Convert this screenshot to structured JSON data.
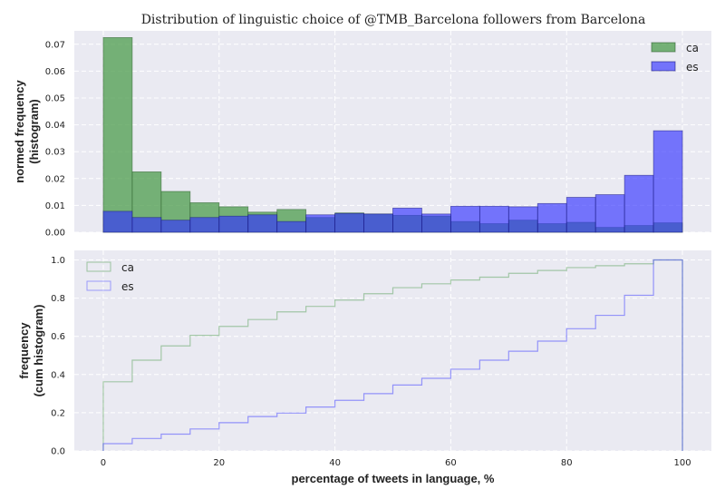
{
  "chart_data": [
    {
      "type": "bar",
      "title": "Distribution of linguistic choice of @TMB_Barcelona followers from Barcelona",
      "ylabel_line1": "normed frequency",
      "ylabel_line2": "(histogram)",
      "xlabel": "",
      "bin_edges": [
        0,
        5,
        10,
        15,
        20,
        25,
        30,
        35,
        40,
        45,
        50,
        55,
        60,
        65,
        70,
        75,
        80,
        85,
        90,
        95,
        100
      ],
      "xlim": [
        -5,
        105
      ],
      "ylim": [
        0,
        0.075
      ],
      "yticks": [
        0.0,
        0.01,
        0.02,
        0.03,
        0.04,
        0.05,
        0.06,
        0.07
      ],
      "ytick_labels": [
        "0.00",
        "0.01",
        "0.02",
        "0.03",
        "0.04",
        "0.05",
        "0.06",
        "0.07"
      ],
      "grid": true,
      "legend_position": "top-right",
      "series": [
        {
          "name": "ca",
          "color": "#4c9c4c",
          "values": [
            0.0725,
            0.0225,
            0.0152,
            0.011,
            0.0095,
            0.0075,
            0.0085,
            0.0055,
            0.0072,
            0.0068,
            0.0063,
            0.006,
            0.004,
            0.0032,
            0.0045,
            0.0032,
            0.0037,
            0.0018,
            0.0025,
            0.0035
          ]
        },
        {
          "name": "es",
          "color": "#4a4aff",
          "values": [
            0.0078,
            0.0055,
            0.0045,
            0.0055,
            0.006,
            0.0065,
            0.004,
            0.0065,
            0.007,
            0.0068,
            0.009,
            0.0068,
            0.0097,
            0.0097,
            0.0095,
            0.0107,
            0.013,
            0.014,
            0.0212,
            0.0378
          ]
        }
      ]
    },
    {
      "type": "line",
      "title": "",
      "ylabel_line1": "frequency",
      "ylabel_line2": "(cum histogram)",
      "xlabel": "percentage of tweets in language, %",
      "bin_edges": [
        0,
        5,
        10,
        15,
        20,
        25,
        30,
        35,
        40,
        45,
        50,
        55,
        60,
        65,
        70,
        75,
        80,
        85,
        90,
        95,
        100
      ],
      "xlim": [
        -5,
        105
      ],
      "ylim": [
        0,
        1.05
      ],
      "xticks": [
        0,
        20,
        40,
        60,
        80,
        100
      ],
      "xtick_labels": [
        "0",
        "20",
        "40",
        "60",
        "80",
        "100"
      ],
      "yticks": [
        0.0,
        0.2,
        0.4,
        0.6,
        0.8,
        1.0
      ],
      "ytick_labels": [
        "0.0",
        "0.2",
        "0.4",
        "0.6",
        "0.8",
        "1.0"
      ],
      "grid": true,
      "legend_position": "top-left",
      "series": [
        {
          "name": "ca",
          "color": "#4c9c4c",
          "values": [
            0.362,
            0.475,
            0.55,
            0.605,
            0.652,
            0.688,
            0.728,
            0.757,
            0.79,
            0.823,
            0.855,
            0.875,
            0.895,
            0.91,
            0.93,
            0.945,
            0.96,
            0.97,
            0.98,
            1.0
          ]
        },
        {
          "name": "es",
          "color": "#4a4aff",
          "values": [
            0.038,
            0.065,
            0.088,
            0.115,
            0.148,
            0.18,
            0.198,
            0.23,
            0.265,
            0.3,
            0.345,
            0.38,
            0.428,
            0.475,
            0.522,
            0.575,
            0.64,
            0.71,
            0.815,
            1.0
          ]
        }
      ]
    }
  ]
}
